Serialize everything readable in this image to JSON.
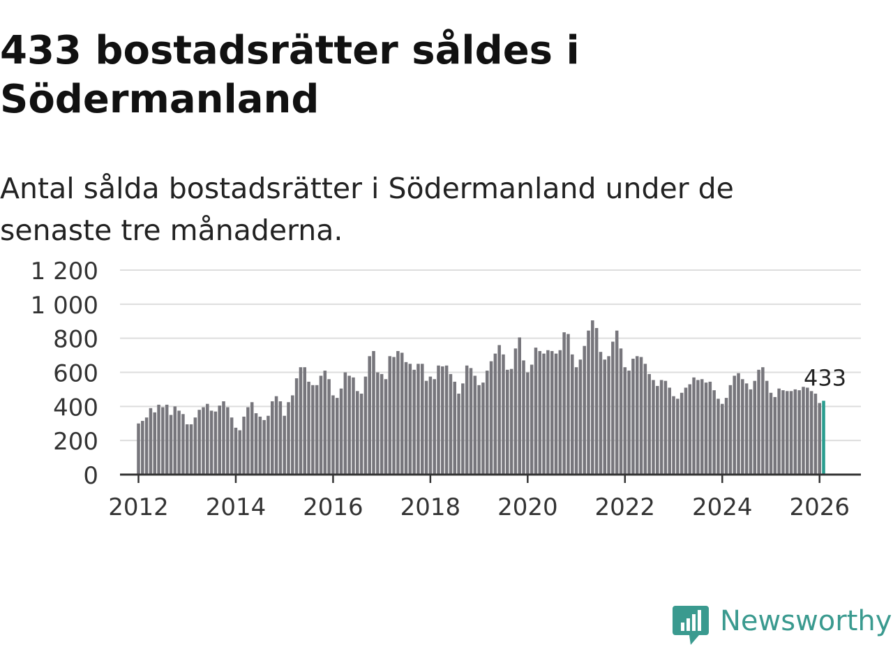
{
  "title": "433 bostadsrätter såldes i Södermanland",
  "subtitle": "Antal sålda bostadsrätter i Södermanland under de senaste tre månaderna.",
  "brand": {
    "name": "Newsworthy",
    "color": "#3a9a8f",
    "icon": "newsworthy-logo-icon"
  },
  "colors": {
    "bar": "#77767c",
    "highlight": "#2a9d8f",
    "grid": "#dddddd",
    "axis": "#333333",
    "text": "#333333"
  },
  "chart_data": {
    "type": "bar",
    "title": "Antal sålda bostadsrätter",
    "xlabel": "",
    "ylabel": "",
    "ylim": [
      0,
      1200
    ],
    "xlim": [
      2011.62,
      2026.85
    ],
    "yticks": [
      0,
      200,
      400,
      600,
      800,
      1000,
      1200
    ],
    "ytick_labels": [
      "0",
      "200",
      "400",
      "600",
      "800",
      "1 000",
      "1 200"
    ],
    "xticks": [
      2012,
      2014,
      2016,
      2018,
      2020,
      2022,
      2024,
      2026
    ],
    "xtick_labels": [
      "2012",
      "2014",
      "2016",
      "2018",
      "2020",
      "2022",
      "2024",
      "2026"
    ],
    "start": {
      "year": 2012,
      "month": 1
    },
    "annotation": {
      "text": "433",
      "index": 169
    },
    "values": [
      300,
      315,
      335,
      390,
      365,
      410,
      395,
      410,
      350,
      400,
      375,
      355,
      295,
      295,
      335,
      380,
      395,
      415,
      375,
      370,
      405,
      430,
      395,
      335,
      275,
      260,
      340,
      395,
      425,
      360,
      340,
      320,
      345,
      430,
      460,
      430,
      345,
      425,
      465,
      565,
      630,
      630,
      545,
      525,
      525,
      580,
      610,
      560,
      465,
      450,
      505,
      600,
      580,
      570,
      490,
      475,
      575,
      695,
      725,
      600,
      590,
      560,
      695,
      690,
      725,
      715,
      660,
      650,
      615,
      650,
      650,
      550,
      575,
      560,
      640,
      635,
      640,
      590,
      545,
      475,
      535,
      640,
      625,
      580,
      525,
      540,
      610,
      665,
      710,
      760,
      705,
      615,
      620,
      740,
      805,
      670,
      600,
      645,
      745,
      725,
      710,
      730,
      725,
      710,
      730,
      835,
      825,
      705,
      630,
      675,
      755,
      845,
      905,
      860,
      720,
      675,
      695,
      780,
      845,
      740,
      630,
      610,
      680,
      695,
      690,
      650,
      590,
      555,
      520,
      555,
      550,
      510,
      460,
      445,
      480,
      510,
      530,
      570,
      555,
      560,
      540,
      545,
      495,
      445,
      415,
      450,
      525,
      580,
      595,
      560,
      535,
      500,
      550,
      615,
      630,
      550,
      480,
      455,
      505,
      495,
      490,
      490,
      500,
      495,
      515,
      510,
      490,
      475,
      420,
      433
    ]
  }
}
